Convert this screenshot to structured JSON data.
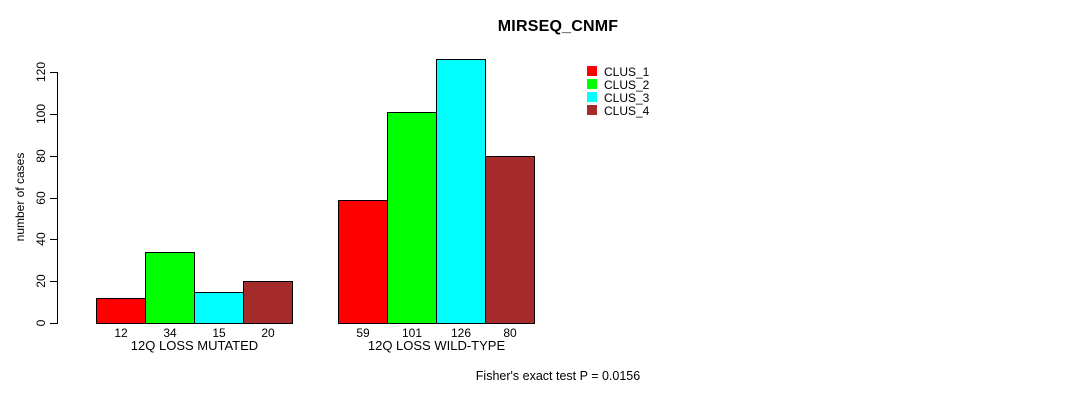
{
  "title": "MIRSEQ_CNMF",
  "footer": "Fisher's exact test P = 0.0156",
  "y_axis": {
    "label": "number of cases",
    "ticks": [
      0,
      20,
      40,
      60,
      80,
      100,
      120
    ]
  },
  "legend": {
    "items": [
      {
        "label": "CLUS_1",
        "color": "#FF0000"
      },
      {
        "label": "CLUS_2",
        "color": "#00FF00"
      },
      {
        "label": "CLUS_3",
        "color": "#00FFFF"
      },
      {
        "label": "CLUS_4",
        "color": "#A52A2A"
      }
    ]
  },
  "chart_data": {
    "type": "bar",
    "title": "MIRSEQ_CNMF",
    "categories": [
      "12Q LOSS MUTATED",
      "12Q LOSS WILD-TYPE"
    ],
    "series": [
      {
        "name": "CLUS_1",
        "color": "#FF0000",
        "values": [
          12,
          59
        ]
      },
      {
        "name": "CLUS_2",
        "color": "#00FF00",
        "values": [
          34,
          101
        ]
      },
      {
        "name": "CLUS_3",
        "color": "#00FFFF",
        "values": [
          15,
          126
        ]
      },
      {
        "name": "CLUS_4",
        "color": "#A52A2A",
        "values": [
          20,
          80
        ]
      }
    ],
    "bar_value_labels": [
      [
        12,
        34,
        15,
        20
      ],
      [
        59,
        101,
        126,
        80
      ]
    ],
    "xlabel": "",
    "ylabel": "number of cases",
    "ylim": [
      0,
      126
    ],
    "yticks": [
      0,
      20,
      40,
      60,
      80,
      100,
      120
    ],
    "grid": false,
    "bar_border_color": "#000000",
    "legend_position": "top-right",
    "annotation": "Fisher's exact test P = 0.0156"
  }
}
